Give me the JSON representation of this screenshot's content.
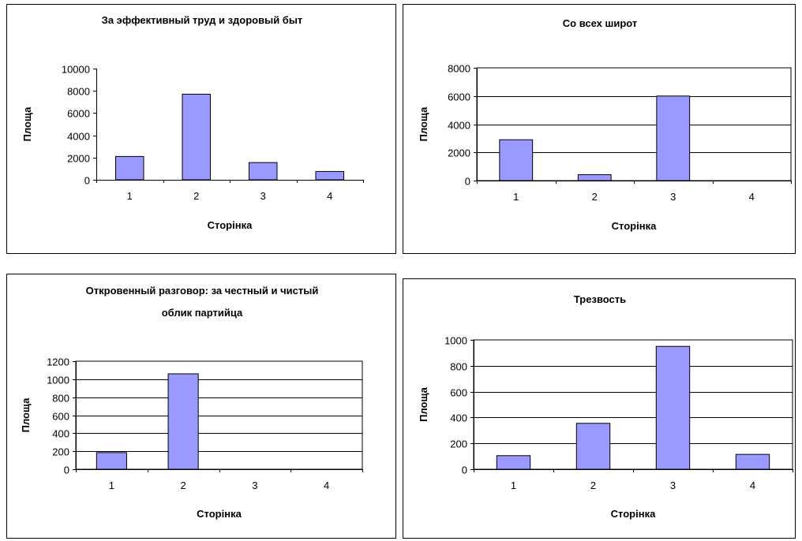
{
  "chart_data": [
    {
      "type": "bar",
      "title": "За эффективный труд и здоровый быт",
      "title_lines": [
        "За эффективный труд и здоровый быт"
      ],
      "categories": [
        "1",
        "2",
        "3",
        "4"
      ],
      "values": [
        2100,
        7700,
        1550,
        750
      ],
      "xlabel": "Сторінка",
      "ylabel": "Площа",
      "ylim": [
        0,
        10000
      ],
      "yticks": [
        0,
        2000,
        4000,
        6000,
        8000,
        10000
      ],
      "ytick_labels": [
        "0",
        "2000",
        "4000",
        "6000",
        "8000",
        "10000"
      ],
      "grid": false,
      "bar_color": "#9999ff",
      "plot_bg": "#ffffff"
    },
    {
      "type": "bar",
      "title": "Со всех широт",
      "title_lines": [
        "Со всех широт"
      ],
      "categories": [
        "1",
        "2",
        "3",
        "4"
      ],
      "values": [
        2900,
        420,
        6000,
        0
      ],
      "xlabel": "Сторінка",
      "ylabel": "Площа",
      "ylim": [
        0,
        8000
      ],
      "yticks": [
        0,
        2000,
        4000,
        6000,
        8000
      ],
      "ytick_labels": [
        "0",
        "2000",
        "4000",
        "6000",
        "8000"
      ],
      "grid": true,
      "bar_color": "#9999ff",
      "plot_bg": "#ffffff"
    },
    {
      "type": "bar",
      "title": "Откровенный разговор: за честный и чистый облик партийца",
      "title_lines": [
        "Откровенный разговор: за честный и чистый",
        "облик партийца"
      ],
      "categories": [
        "1",
        "2",
        "3",
        "4"
      ],
      "values": [
        185,
        1060,
        0,
        0
      ],
      "xlabel": "Сторінка",
      "ylabel": "Площа",
      "ylim": [
        0,
        1200
      ],
      "yticks": [
        0,
        200,
        400,
        600,
        800,
        1000,
        1200
      ],
      "ytick_labels": [
        "0",
        "200",
        "400",
        "600",
        "800",
        "1000",
        "1200"
      ],
      "grid": true,
      "bar_color": "#9999ff",
      "plot_bg": "#ffffff"
    },
    {
      "type": "bar",
      "title": "Трезвость",
      "title_lines": [
        "Трезвость"
      ],
      "categories": [
        "1",
        "2",
        "3",
        "4"
      ],
      "values": [
        105,
        355,
        950,
        115
      ],
      "xlabel": "Сторінка",
      "ylabel": "Площа",
      "ylim": [
        0,
        1000
      ],
      "yticks": [
        0,
        200,
        400,
        600,
        800,
        1000
      ],
      "ytick_labels": [
        "0",
        "200",
        "400",
        "600",
        "800",
        "1000"
      ],
      "grid": true,
      "bar_color": "#9999ff",
      "plot_bg": "#ffffff"
    }
  ]
}
